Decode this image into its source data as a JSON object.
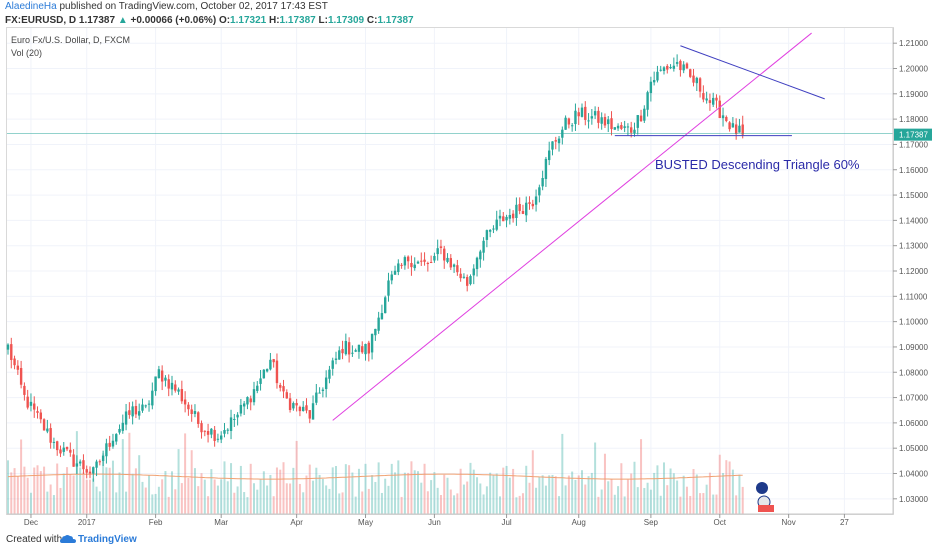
{
  "header": {
    "author": "AlaedineHa",
    "published": "published on TradingView.com, October 02, 2017 17:43 EST",
    "symbol": "FX:EURUSD, D",
    "last": "1.17387",
    "change": "+0.00066 (+0.06%)",
    "open_label": "O:",
    "open": "1.17321",
    "high_label": "H:",
    "high": "1.17387",
    "low_label": "L:",
    "low": "1.17309",
    "close_label": "C:",
    "close": "1.17387"
  },
  "legend": {
    "line1": "Euro Fx/U.S. Dollar, D, FXCM",
    "line2": "Vol (20)"
  },
  "footer": {
    "created": "Created with",
    "brand": "TradingView"
  },
  "colors": {
    "up": "#26a69a",
    "down": "#ef5350",
    "trendline": "#e040e0",
    "triangle": "#3f3fc0",
    "ma": "#f0a070",
    "annotation": "#2a2aa8"
  },
  "chart_data": {
    "type": "candlestick",
    "annotation": "BUSTED Descending Triangle 60%",
    "price_axis": {
      "ticks": [
        "1.21000",
        "1.20000",
        "1.19000",
        "1.18000",
        "1.17000",
        "1.16000",
        "1.15000",
        "1.14000",
        "1.13000",
        "1.12000",
        "1.11000",
        "1.10000",
        "1.09000",
        "1.08000",
        "1.07000",
        "1.06000",
        "1.05000",
        "1.04000",
        "1.03000"
      ],
      "ylim": [
        1.024,
        1.216
      ],
      "current": "1.17387"
    },
    "x_axis": {
      "ticks": [
        "Dec",
        "2017",
        "Feb",
        "Mar",
        "Apr",
        "May",
        "Jun",
        "Jul",
        "Aug",
        "Sep",
        "Oct",
        "Nov",
        "27"
      ],
      "tick_bar_index": [
        7,
        24,
        45,
        65,
        88,
        109,
        130,
        152,
        174,
        196,
        217,
        238,
        255
      ]
    },
    "close_anchors": [
      [
        0,
        1.09
      ],
      [
        5,
        1.07
      ],
      [
        10,
        1.06
      ],
      [
        14,
        1.052
      ],
      [
        20,
        1.045
      ],
      [
        26,
        1.04
      ],
      [
        32,
        1.055
      ],
      [
        38,
        1.065
      ],
      [
        42,
        1.065
      ],
      [
        46,
        1.08
      ],
      [
        52,
        1.072
      ],
      [
        58,
        1.06
      ],
      [
        64,
        1.055
      ],
      [
        70,
        1.063
      ],
      [
        76,
        1.075
      ],
      [
        80,
        1.085
      ],
      [
        84,
        1.07
      ],
      [
        88,
        1.066
      ],
      [
        92,
        1.063
      ],
      [
        96,
        1.075
      ],
      [
        102,
        1.09
      ],
      [
        106,
        1.089
      ],
      [
        110,
        1.089
      ],
      [
        116,
        1.115
      ],
      [
        122,
        1.125
      ],
      [
        128,
        1.122
      ],
      [
        132,
        1.128
      ],
      [
        140,
        1.115
      ],
      [
        144,
        1.13
      ],
      [
        150,
        1.14
      ],
      [
        154,
        1.143
      ],
      [
        160,
        1.148
      ],
      [
        166,
        1.17
      ],
      [
        170,
        1.178
      ],
      [
        174,
        1.182
      ],
      [
        180,
        1.18
      ],
      [
        186,
        1.176
      ],
      [
        190,
        1.176
      ],
      [
        193,
        1.182
      ],
      [
        196,
        1.195
      ],
      [
        200,
        1.2
      ],
      [
        204,
        1.202
      ],
      [
        208,
        1.196
      ],
      [
        210,
        1.194
      ],
      [
        214,
        1.187
      ],
      [
        218,
        1.182
      ],
      [
        221,
        1.176
      ],
      [
        224,
        1.174
      ]
    ],
    "volume_range": [
      0.2,
      1.0
    ],
    "volume_ma_level": 0.45,
    "trendline": {
      "from": [
        99,
        1.061
      ],
      "to": [
        245,
        1.214
      ]
    },
    "triangle_upper": {
      "from": [
        205,
        1.209
      ],
      "to": [
        249,
        1.188
      ]
    },
    "triangle_base": {
      "from": [
        185,
        1.1735
      ],
      "to": [
        239,
        1.1735
      ]
    },
    "horizontal_line": 1.1743
  }
}
